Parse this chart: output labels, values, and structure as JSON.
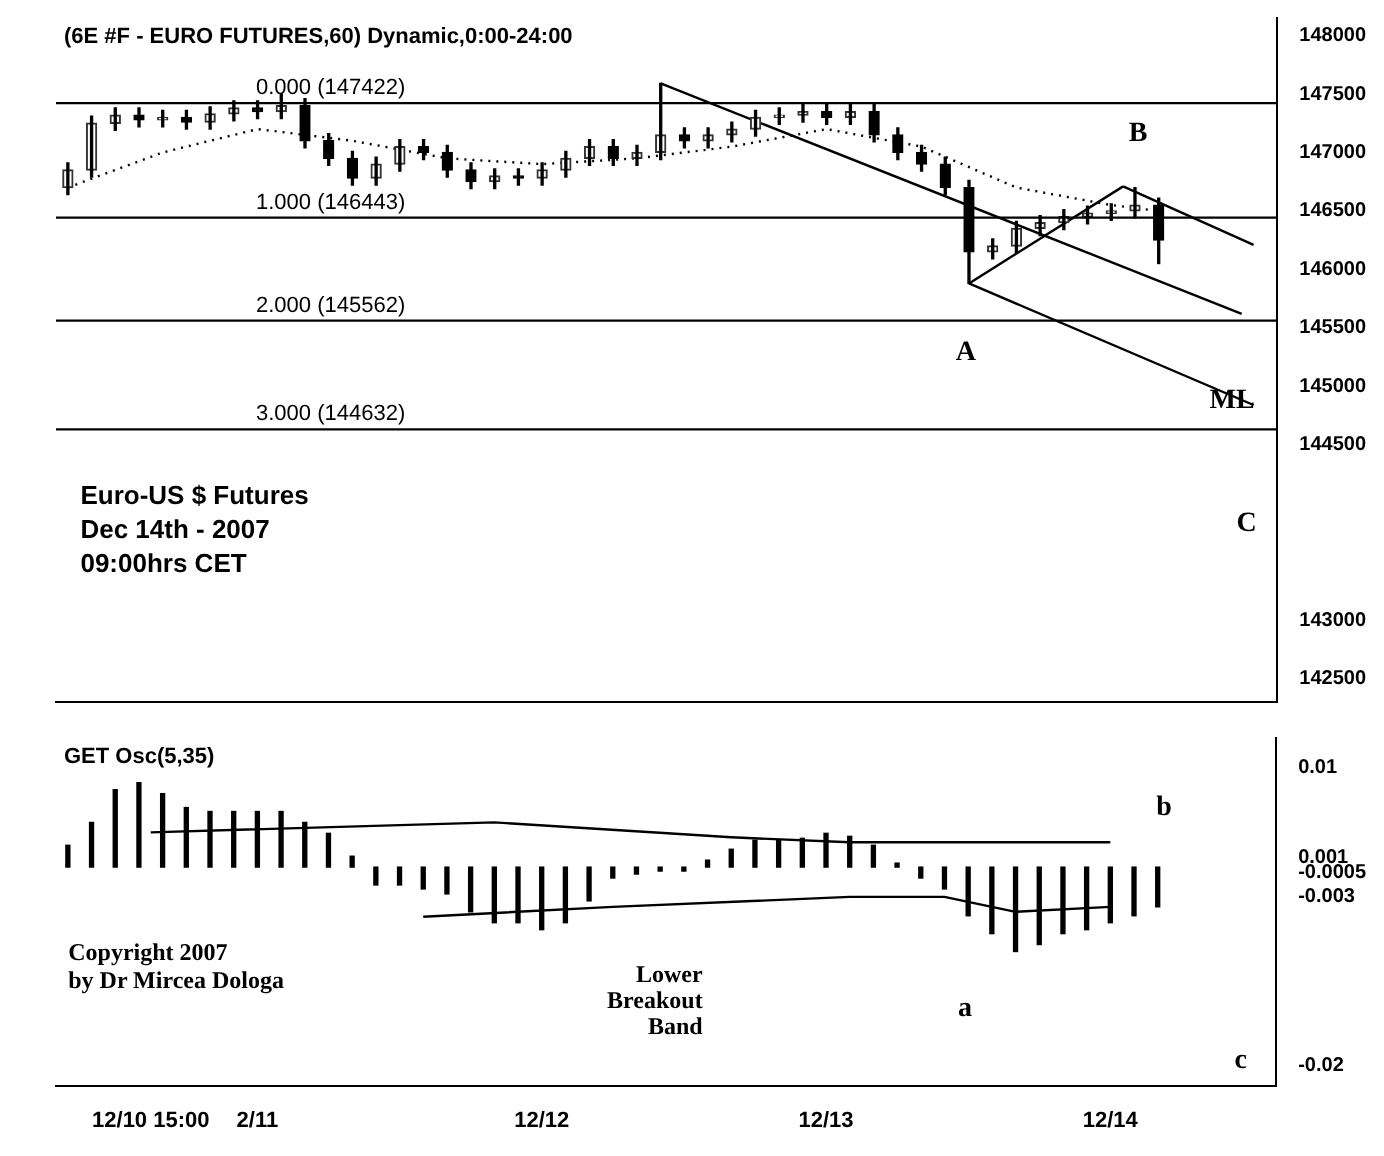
{
  "chart_data": [
    {
      "type": "candlestick",
      "title": "(6E #F - EURO FUTURES,60) Dynamic,0:00-24:00",
      "x": [
        "--12-10T08:00",
        "--12-10T10:00",
        "--12-10T12:00",
        "--12-10T14:00",
        "--12-10T16:00",
        "--12-10T18:00",
        "--12-10T20:00",
        "--12-10T22:00",
        "--12-11T00:00",
        "--12-11T02:00",
        "--12-11T04:00",
        "--12-11T06:00",
        "--12-11T08:00",
        "--12-11T10:00",
        "--12-11T12:00",
        "--12-11T14:00",
        "--12-11T16:00",
        "--12-11T18:00",
        "--12-11T20:00",
        "--12-11T22:00",
        "--12-12T00:00",
        "--12-12T02:00",
        "--12-12T04:00",
        "--12-12T06:00",
        "--12-12T08:00",
        "--12-12T10:00",
        "--12-12T12:00",
        "--12-12T14:00",
        "--12-12T16:00",
        "--12-12T18:00",
        "--12-12T20:00",
        "--12-12T22:00",
        "--12-13T00:00",
        "--12-13T02:00",
        "--12-13T04:00",
        "--12-13T06:00",
        "--12-13T08:00",
        "--12-13T10:00",
        "--12-13T12:00",
        "--12-13T14:00",
        "--12-13T16:00",
        "--12-13T18:00",
        "--12-13T20:00",
        "--12-13T22:00",
        "--12-14T00:00",
        "--12-14T02:00",
        "--12-14T04:00"
      ],
      "ohlc": [
        [
          146700,
          146910,
          146640,
          146850
        ],
        [
          146850,
          147310,
          146790,
          147250
        ],
        [
          147250,
          147380,
          147190,
          147320
        ],
        [
          147320,
          147380,
          147220,
          147280
        ],
        [
          147280,
          147360,
          147220,
          147300
        ],
        [
          147300,
          147360,
          147200,
          147260
        ],
        [
          147260,
          147390,
          147200,
          147330
        ],
        [
          147330,
          147440,
          147270,
          147380
        ],
        [
          147380,
          147440,
          147290,
          147350
        ],
        [
          147350,
          147500,
          147290,
          147400
        ],
        [
          147400,
          147460,
          147040,
          147100
        ],
        [
          147100,
          147160,
          146890,
          146950
        ],
        [
          146950,
          147010,
          146720,
          146780
        ],
        [
          146780,
          146960,
          146720,
          146900
        ],
        [
          146900,
          147110,
          146840,
          147050
        ],
        [
          147050,
          147110,
          146940,
          147000
        ],
        [
          147000,
          147060,
          146790,
          146850
        ],
        [
          146850,
          146910,
          146690,
          146750
        ],
        [
          146750,
          146860,
          146690,
          146800
        ],
        [
          146800,
          146860,
          146720,
          146780
        ],
        [
          146780,
          146910,
          146720,
          146850
        ],
        [
          146850,
          147010,
          146790,
          146950
        ],
        [
          146950,
          147110,
          146890,
          147050
        ],
        [
          147050,
          147110,
          146890,
          146950
        ],
        [
          146950,
          147060,
          146890,
          147000
        ],
        [
          147000,
          147590,
          146940,
          147150
        ],
        [
          147150,
          147210,
          147040,
          147100
        ],
        [
          147100,
          147210,
          147040,
          147150
        ],
        [
          147150,
          147260,
          147090,
          147200
        ],
        [
          147200,
          147360,
          147140,
          147300
        ],
        [
          147300,
          147380,
          147240,
          147320
        ],
        [
          147320,
          147410,
          147260,
          147350
        ],
        [
          147350,
          147410,
          147240,
          147300
        ],
        [
          147300,
          147420,
          147240,
          147350
        ],
        [
          147350,
          147410,
          147090,
          147150
        ],
        [
          147150,
          147210,
          146940,
          147000
        ],
        [
          147000,
          147060,
          146840,
          146900
        ],
        [
          146900,
          146960,
          146640,
          146700
        ],
        [
          146700,
          146760,
          145880,
          146150
        ],
        [
          146150,
          146260,
          146090,
          146200
        ],
        [
          146200,
          146410,
          146140,
          146350
        ],
        [
          146350,
          146460,
          146290,
          146400
        ],
        [
          146400,
          146510,
          146340,
          146450
        ],
        [
          146450,
          146540,
          146390,
          146480
        ],
        [
          146480,
          146560,
          146420,
          146500
        ],
        [
          146500,
          146700,
          146440,
          146550
        ],
        [
          146550,
          146610,
          146050,
          146250
        ]
      ],
      "series": [
        {
          "type": "line",
          "line_style": "dotted",
          "color": "#000000",
          "x": [
            "--12-10T08:00",
            "--12-10T16:00",
            "--12-11T00:00",
            "--12-11T08:00",
            "--12-11T16:00",
            "--12-12T00:00",
            "--12-12T08:00",
            "--12-12T16:00",
            "--12-13T00:00",
            "--12-13T08:00",
            "--12-13T16:00",
            "--12-14T00:00",
            "--12-14T04:00"
          ],
          "values": [
            146700,
            147000,
            147200,
            147100,
            146950,
            146900,
            146950,
            147050,
            147200,
            147050,
            146700,
            146550,
            146500
          ]
        },
        {
          "type": "line",
          "color": "#000000",
          "x": [
            "--12-12T10:00",
            "--12-14T11:00"
          ],
          "values": [
            147590,
            145620
          ]
        },
        {
          "type": "line",
          "color": "#000000",
          "x": [
            "--12-14T01:00",
            "--12-14T12:00"
          ],
          "values": [
            146710,
            146210
          ]
        },
        {
          "type": "line",
          "color": "#000000",
          "x": [
            "--12-13T12:00",
            "--12-14T12:00"
          ],
          "values": [
            145880,
            144840
          ]
        },
        {
          "type": "line",
          "color": "#000000",
          "x": [
            "--12-13T12:00",
            "--12-14T01:00"
          ],
          "values": [
            145880,
            146710
          ]
        }
      ],
      "ref_lines": [
        {
          "axis": "y",
          "value": 147422,
          "label": "0.000 (147422)"
        },
        {
          "axis": "y",
          "value": 146443,
          "label": "1.000 (146443)"
        },
        {
          "axis": "y",
          "value": 145562,
          "label": "2.000 (145562)"
        },
        {
          "axis": "y",
          "value": 144632,
          "label": "3.000 (144632)"
        }
      ],
      "annotations": [
        "Euro-US $ Futures",
        "Dec 14th - 2007",
        "09:00hrs CET",
        "A",
        "B",
        "ML",
        "C"
      ],
      "xlim": [
        "--12-10T07:00",
        "--12-14T14:00"
      ],
      "ylim": [
        142300,
        148150
      ],
      "yticks": [
        148000,
        147500,
        147000,
        146500,
        146000,
        145500,
        145000,
        144500,
        143000,
        142500
      ],
      "tick_labels": "y"
    },
    {
      "type": "bar",
      "title": "GET Osc(5,35)",
      "color": "#000000",
      "x": [
        "--12-10T08:00",
        "--12-10T10:00",
        "--12-10T12:00",
        "--12-10T14:00",
        "--12-10T16:00",
        "--12-10T18:00",
        "--12-10T20:00",
        "--12-10T22:00",
        "--12-11T00:00",
        "--12-11T02:00",
        "--12-11T04:00",
        "--12-11T06:00",
        "--12-11T08:00",
        "--12-11T10:00",
        "--12-11T12:00",
        "--12-11T14:00",
        "--12-11T16:00",
        "--12-11T18:00",
        "--12-11T20:00",
        "--12-11T22:00",
        "--12-12T00:00",
        "--12-12T02:00",
        "--12-12T04:00",
        "--12-12T06:00",
        "--12-12T08:00",
        "--12-12T10:00",
        "--12-12T12:00",
        "--12-12T14:00",
        "--12-12T16:00",
        "--12-12T18:00",
        "--12-12T20:00",
        "--12-12T22:00",
        "--12-13T00:00",
        "--12-13T02:00",
        "--12-13T04:00",
        "--12-13T06:00",
        "--12-13T08:00",
        "--12-13T10:00",
        "--12-13T12:00",
        "--12-13T14:00",
        "--12-13T16:00",
        "--12-13T18:00",
        "--12-13T20:00",
        "--12-13T22:00",
        "--12-14T00:00",
        "--12-14T02:00",
        "--12-14T04:00"
      ],
      "values": [
        0.0022,
        0.0045,
        0.0078,
        0.0085,
        0.0074,
        0.006,
        0.0056,
        0.0056,
        0.0056,
        0.0056,
        0.0045,
        0.0034,
        0.0011,
        -0.0018,
        -0.0018,
        -0.0022,
        -0.0027,
        -0.0045,
        -0.0056,
        -0.0056,
        -0.0063,
        -0.0056,
        -0.0034,
        -0.0011,
        -0.0007,
        -0.0004,
        -0.0004,
        0.0007,
        0.0018,
        0.0027,
        0.0027,
        0.0029,
        0.0034,
        0.0031,
        0.0022,
        0.0004,
        -0.0011,
        -0.0022,
        -0.0049,
        -0.0067,
        -0.0085,
        -0.0078,
        -0.0067,
        -0.0063,
        -0.0056,
        -0.0049,
        -0.004
      ],
      "series": [
        {
          "type": "line",
          "color": "#000000",
          "x": [
            "--12-10T15:00",
            "--12-11T20:00",
            "--12-12T16:00",
            "--12-13T02:00",
            "--12-14T00:00"
          ],
          "values": [
            0.0035,
            0.0045,
            0.003,
            0.0025,
            0.0025
          ]
        },
        {
          "type": "line",
          "color": "#000000",
          "x": [
            "--12-11T14:00",
            "--12-12T06:00",
            "--12-13T02:00",
            "--12-13T10:00",
            "--12-13T16:00",
            "--12-14T00:00"
          ],
          "values": [
            -0.005,
            -0.004,
            -0.003,
            -0.003,
            -0.0045,
            -0.004
          ]
        }
      ],
      "annotations": [
        "Copyright 2007",
        "by Dr Mircea Dologa",
        "b",
        "a",
        "c",
        "Lower Breakout Band"
      ],
      "xlim": [
        "--12-10T07:00",
        "--12-14T14:00"
      ],
      "ylim": [
        -0.022,
        0.013
      ],
      "xticks": [
        {
          "value": "--12-10T15:00",
          "label": "12/10 15:00"
        },
        {
          "value": "--12-11",
          "label": "2/11"
        },
        {
          "value": "--12-12",
          "label": "12/12"
        },
        {
          "value": "--12-13",
          "label": "12/13"
        },
        {
          "value": "--12-14",
          "label": "12/14"
        }
      ],
      "yticks": [
        0.01,
        0.001,
        -0.0005,
        -0.003,
        -0.02
      ]
    }
  ]
}
